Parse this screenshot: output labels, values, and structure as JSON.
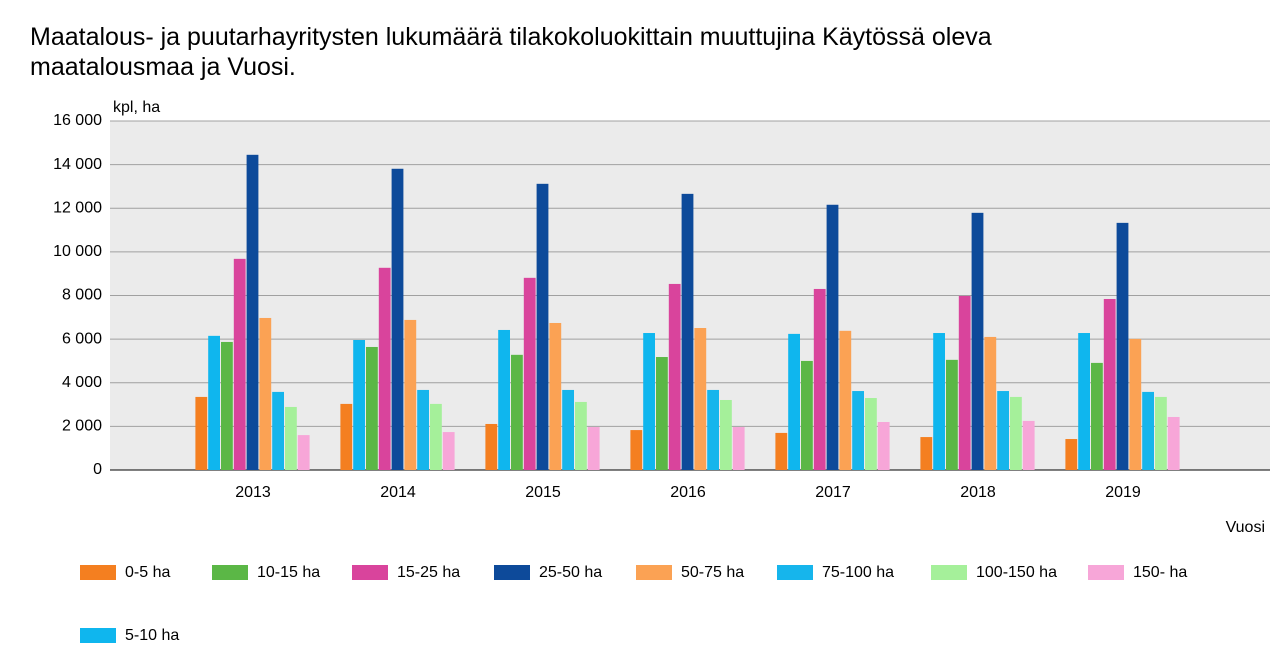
{
  "chart_data": {
    "type": "bar",
    "title": "Maatalous- ja puutarhayritysten lukumäärä tilakokoluokittain muuttujina Käytössä oleva maatalousmaa ja Vuosi.",
    "y_label": "kpl, ha",
    "x_label": "Vuosi",
    "categories": [
      "2013",
      "2014",
      "2015",
      "2016",
      "2017",
      "2018",
      "2019"
    ],
    "series": [
      {
        "name": "0-5 ha",
        "color": "#f47f20",
        "values": [
          3350,
          3030,
          2110,
          1830,
          1700,
          1510,
          1420
        ]
      },
      {
        "name": "5-10 ha",
        "color": "#0fb6ee",
        "values": [
          6150,
          5960,
          6420,
          6280,
          6240,
          6280,
          6280
        ]
      },
      {
        "name": "10-15 ha",
        "color": "#5bb746",
        "values": [
          5870,
          5640,
          5280,
          5180,
          5000,
          5050,
          4910
        ]
      },
      {
        "name": "15-25 ha",
        "color": "#d9449c",
        "values": [
          9680,
          9270,
          8810,
          8530,
          8300,
          7980,
          7840
        ]
      },
      {
        "name": "25-50 ha",
        "color": "#0d4a9a",
        "values": [
          14450,
          13810,
          13120,
          12660,
          12160,
          11790,
          11330
        ]
      },
      {
        "name": "50-75 ha",
        "color": "#fba254",
        "values": [
          6970,
          6880,
          6740,
          6510,
          6380,
          6100,
          6010
        ]
      },
      {
        "name": "75-100 ha",
        "color": "#16b5ec",
        "values": [
          3580,
          3670,
          3670,
          3670,
          3620,
          3620,
          3580
        ]
      },
      {
        "name": "100-150 ha",
        "color": "#a5f09a",
        "values": [
          2890,
          3030,
          3120,
          3210,
          3300,
          3350,
          3350
        ]
      },
      {
        "name": "150- ha",
        "color": "#f7a6d8",
        "values": [
          1600,
          1740,
          1970,
          1970,
          2200,
          2250,
          2430
        ]
      }
    ],
    "ylim": [
      0,
      16000
    ],
    "yticks": [
      0,
      {
        "value": 2000,
        "label": "2 000"
      },
      {
        "value": 4000,
        "label": "4 000"
      },
      {
        "value": 6000,
        "label": "6 000"
      },
      {
        "value": 8000,
        "label": "8 000"
      },
      {
        "value": 10000,
        "label": "10 000"
      },
      {
        "value": 12000,
        "label": "12 000"
      },
      {
        "value": 14000,
        "label": "14 000"
      },
      {
        "value": 16000,
        "label": "16 000"
      }
    ],
    "grid": true
  }
}
